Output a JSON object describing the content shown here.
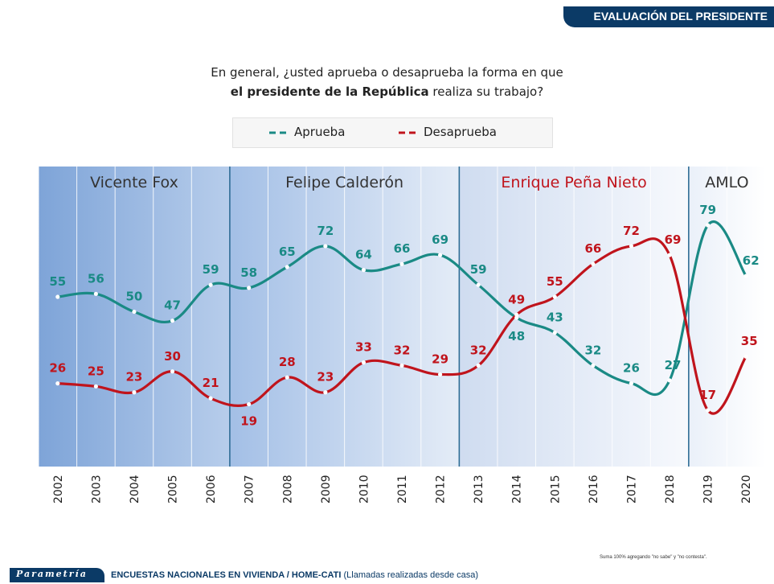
{
  "header": {
    "title": "EVALUACIÓN DEL PRESIDENTE"
  },
  "question": {
    "line1": "En general, ¿usted aprueba o desaprueba la forma en que",
    "line2_bold": "el presidente de la República",
    "line2_rest": " realiza su trabajo?"
  },
  "footer": {
    "brand": "Parametría",
    "text": "ENCUESTAS NACIONALES EN VIVIENDA / HOME-CATI",
    "text_light": " (Llamadas realizadas desde casa)",
    "note": "Suma 100% agregando \"no sabe\" y \"no contesta\"."
  },
  "colors": {
    "approve": "#1a8a85",
    "disapprove": "#c0141c",
    "period_label_default": "#333333",
    "period_label_epn": "#c0141c",
    "header_bg": "#0b3a66"
  },
  "chart_data": {
    "type": "line",
    "categories": [
      "2002",
      "2003",
      "2004",
      "2005",
      "2006",
      "2007",
      "2008",
      "2009",
      "2010",
      "2011",
      "2012",
      "2013",
      "2014",
      "2015",
      "2016",
      "2017",
      "2018",
      "2019",
      "2020"
    ],
    "series": [
      {
        "name": "Aprueba",
        "key": "approve",
        "values": [
          55,
          56,
          50,
          47,
          59,
          58,
          65,
          72,
          64,
          66,
          69,
          59,
          48,
          43,
          32,
          26,
          27,
          79,
          62
        ]
      },
      {
        "name": "Desaprueba",
        "key": "disapprove",
        "values": [
          26,
          25,
          23,
          30,
          21,
          19,
          28,
          23,
          33,
          32,
          29,
          32,
          49,
          55,
          66,
          72,
          69,
          17,
          35
        ]
      }
    ],
    "periods": [
      {
        "label": "Vicente Fox",
        "start": "2002",
        "end": "2006"
      },
      {
        "label": "Felipe Calderón",
        "start": "2007",
        "end": "2012"
      },
      {
        "label": "Enrique Peña Nieto",
        "start": "2013",
        "end": "2018"
      },
      {
        "label": "AMLO",
        "start": "2019",
        "end": "2020"
      }
    ],
    "ylim": [
      0,
      100
    ],
    "grid": true,
    "legend": "top"
  }
}
